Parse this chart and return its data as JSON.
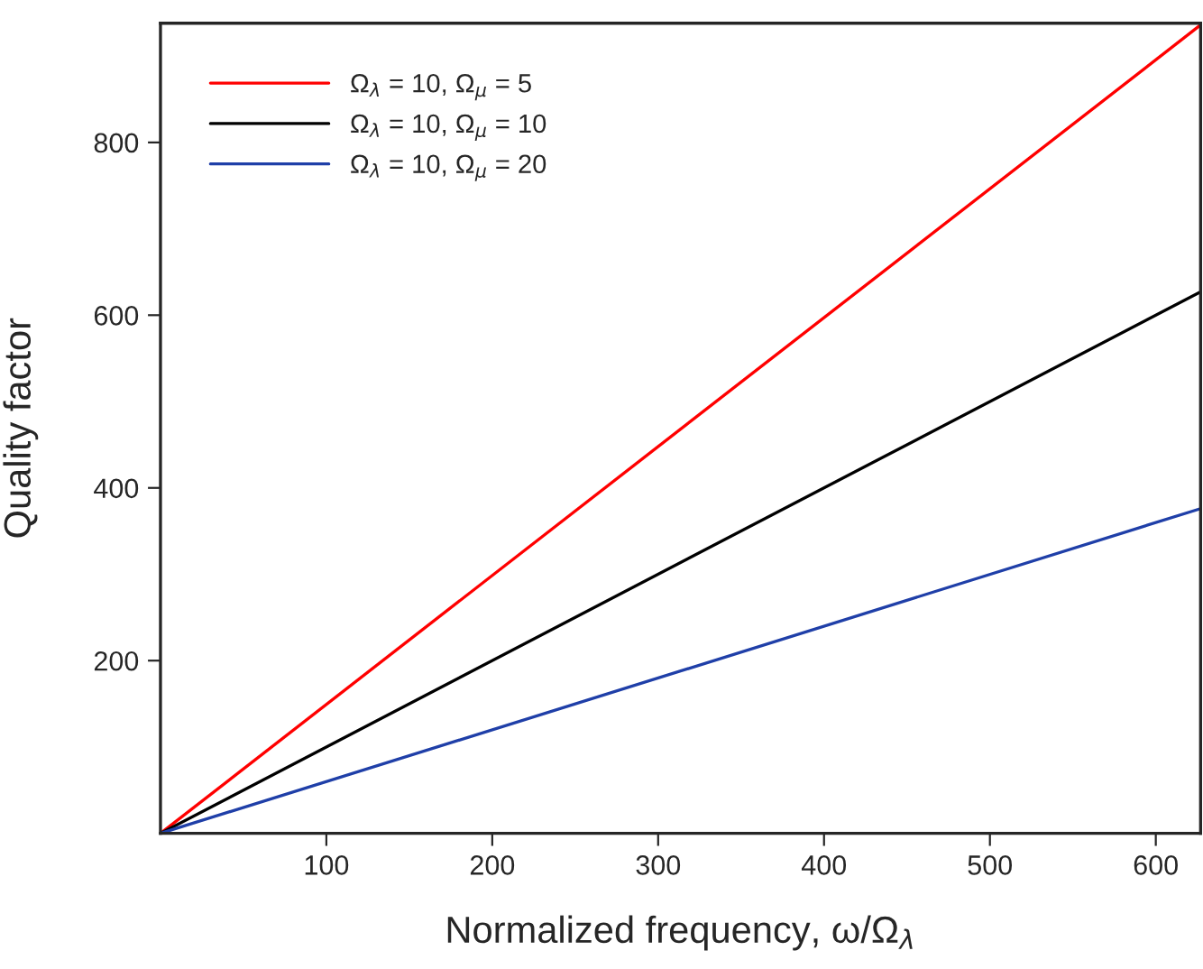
{
  "chart_data": {
    "type": "line",
    "xlabel": "Normalized frequency, ω/Ω$_{λ}$",
    "ylabel": "Quality factor",
    "x": [
      0,
      627
    ],
    "series": [
      {
        "name": "Ω$_{λ}$ = 10, Ω$_{μ}$ = 5",
        "color": "#ff0000",
        "values": [
          0,
          936
        ]
      },
      {
        "name": "Ω$_{λ}$ = 10, Ω$_{μ}$ = 10",
        "color": "#000000",
        "values": [
          0,
          627
        ]
      },
      {
        "name": "Ω$_{λ}$ = 10, Ω$_{μ}$ = 20",
        "color": "#1f3fa8",
        "values": [
          0,
          376
        ]
      }
    ],
    "xlim": [
      0,
      627
    ],
    "ylim": [
      0,
      938
    ],
    "xticks": [
      100,
      200,
      300,
      400,
      500,
      600
    ],
    "yticks": [
      200,
      400,
      600,
      800
    ],
    "grid": false,
    "legend": "top left",
    "marker": "none",
    "line_style": "solid"
  }
}
